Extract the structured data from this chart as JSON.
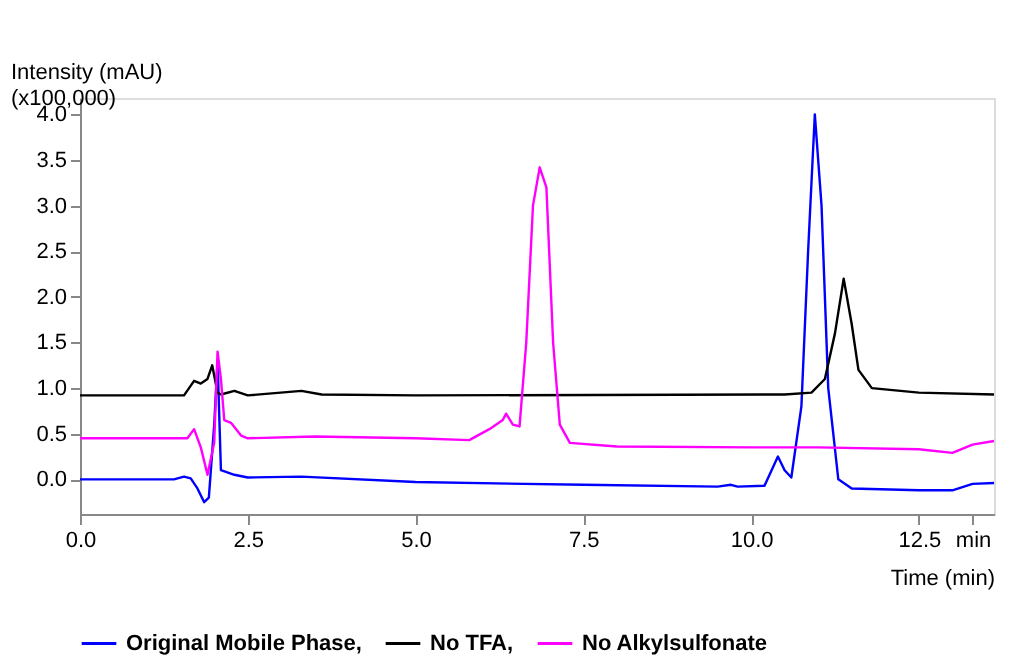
{
  "chart_data": {
    "type": "line",
    "xlabel": "Time (min)",
    "ylabel": "Intensity (mAU)\n(x100,000)",
    "xlim": [
      0,
      13.62
    ],
    "ylim": [
      -0.38,
      4.18
    ],
    "xticks": [
      {
        "value": 0,
        "label": "0.0"
      },
      2.5,
      {
        "value": 5,
        "label": "5.0"
      },
      7.5,
      {
        "value": 10,
        "label": "10.0"
      },
      12.5,
      {
        "value": 13.3,
        "label": "min"
      }
    ],
    "yticks": [
      {
        "value": 0,
        "label": "0.0"
      },
      0.5,
      {
        "value": 1,
        "label": "1.0"
      },
      1.5,
      {
        "value": 2,
        "label": "2.0"
      },
      2.5,
      {
        "value": 3,
        "label": "3.0"
      },
      3.5,
      {
        "value": 4,
        "label": "4.0"
      }
    ],
    "grid": false,
    "legend": "bottom",
    "line_style": "solid",
    "marker": "none",
    "series": [
      {
        "name": "Original Mobile Phase,",
        "color": "#0000ff",
        "x": [
          0,
          1.4,
          1.55,
          1.65,
          1.75,
          1.85,
          1.92,
          2.0,
          2.05,
          2.1,
          2.3,
          2.5,
          3.3,
          5,
          7.5,
          9.5,
          9.7,
          9.8,
          10.2,
          10.4,
          10.5,
          10.6,
          10.75,
          10.85,
          10.95,
          11.05,
          11.15,
          11.3,
          11.5,
          12.5,
          13.0,
          13.3,
          13.62
        ],
        "values": [
          0,
          0,
          0.03,
          0.01,
          -0.1,
          -0.25,
          -0.2,
          0.6,
          1.3,
          0.1,
          0.05,
          0.02,
          0.03,
          -0.03,
          -0.06,
          -0.08,
          -0.06,
          -0.08,
          -0.07,
          0.25,
          0.1,
          0.02,
          0.8,
          2.5,
          4.0,
          3.0,
          1.0,
          0.0,
          -0.1,
          -0.12,
          -0.12,
          -0.05,
          -0.04
        ]
      },
      {
        "name": "No TFA,",
        "color": "#000000",
        "x": [
          0,
          1.55,
          1.7,
          1.8,
          1.9,
          1.97,
          2.05,
          2.1,
          2.3,
          2.5,
          3.3,
          3.6,
          5,
          10.5,
          10.9,
          11.1,
          11.25,
          11.38,
          11.5,
          11.6,
          11.8,
          12.5,
          13.62
        ],
        "values": [
          0.92,
          0.92,
          1.08,
          1.05,
          1.1,
          1.25,
          0.95,
          0.93,
          0.97,
          0.92,
          0.97,
          0.93,
          0.92,
          0.93,
          0.95,
          1.1,
          1.6,
          2.2,
          1.7,
          1.2,
          1.0,
          0.95,
          0.93
        ]
      },
      {
        "name": "No Alkylsulfonate",
        "color": "#ff00ff",
        "x": [
          0,
          1.6,
          1.7,
          1.8,
          1.9,
          2.0,
          2.05,
          2.1,
          2.15,
          2.25,
          2.4,
          2.5,
          3.5,
          5.0,
          5.8,
          6.1,
          6.3,
          6.35,
          6.45,
          6.55,
          6.65,
          6.75,
          6.85,
          6.95,
          7.05,
          7.15,
          7.3,
          8,
          10,
          11,
          12.5,
          13.0,
          13.3,
          13.62
        ],
        "values": [
          0.45,
          0.45,
          0.55,
          0.35,
          0.05,
          0.4,
          1.4,
          1.1,
          0.65,
          0.62,
          0.48,
          0.45,
          0.47,
          0.45,
          0.43,
          0.55,
          0.65,
          0.72,
          0.6,
          0.58,
          1.5,
          3.0,
          3.42,
          3.2,
          1.5,
          0.6,
          0.4,
          0.36,
          0.35,
          0.35,
          0.33,
          0.29,
          0.38,
          0.42
        ]
      }
    ]
  }
}
